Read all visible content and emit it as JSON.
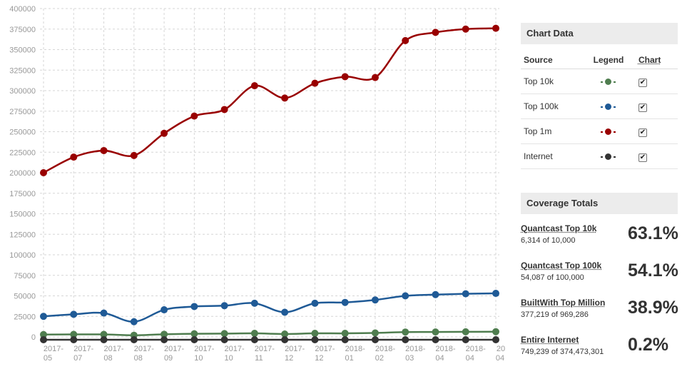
{
  "chart_data": {
    "type": "line",
    "y_ticks": [
      0,
      25000,
      50000,
      75000,
      100000,
      125000,
      150000,
      175000,
      200000,
      225000,
      250000,
      275000,
      300000,
      325000,
      350000,
      375000,
      400000
    ],
    "y_tick_labels": [
      "0",
      "25000",
      "50000",
      "75000",
      "100000",
      "125000",
      "150000",
      "175000",
      "200000",
      "225000",
      "250000",
      "275000",
      "300000",
      "325000",
      "350000",
      "375000",
      "400000"
    ],
    "ylim": [
      0,
      400000
    ],
    "x_labels": [
      [
        "2017-",
        "05"
      ],
      [
        "2017-",
        "07"
      ],
      [
        "2017-",
        "08"
      ],
      [
        "2017-",
        "08"
      ],
      [
        "2017-",
        "09"
      ],
      [
        "2017-",
        "10"
      ],
      [
        "2017-",
        "10"
      ],
      [
        "2017-",
        "11"
      ],
      [
        "2017-",
        "12"
      ],
      [
        "2017-",
        "12"
      ],
      [
        "2018-",
        "01"
      ],
      [
        "2018-",
        "02"
      ],
      [
        "2018-",
        "03"
      ],
      [
        "2018-",
        "04"
      ],
      [
        "2018-",
        "04"
      ],
      [
        "20",
        "04"
      ]
    ],
    "grid": true,
    "series": [
      {
        "name": "Top 1m",
        "color": "#990000",
        "values": [
          200000,
          219000,
          227000,
          221000,
          248000,
          269000,
          277000,
          306000,
          291000,
          309000,
          317000,
          316000,
          361000,
          371000,
          375000,
          376000
        ]
      },
      {
        "name": "Top 100k",
        "color": "#1f5a96",
        "values": [
          25000,
          27500,
          29000,
          18500,
          33000,
          37000,
          38000,
          41000,
          30000,
          41000,
          42000,
          45000,
          50000,
          51500,
          52500,
          53000
        ]
      },
      {
        "name": "Top 10k",
        "color": "#4f7d4f",
        "values": [
          2800,
          3000,
          3000,
          2000,
          3200,
          3800,
          4000,
          4300,
          3500,
          4300,
          4300,
          4800,
          5900,
          6000,
          6200,
          6300
        ]
      },
      {
        "name": "Internet",
        "color": "#333333",
        "values": [
          -3500,
          -3500,
          -3500,
          -3500,
          -3500,
          -3500,
          -3500,
          -3500,
          -3500,
          -3500,
          -3500,
          -3500,
          -3500,
          -3500,
          -3500,
          -3500
        ]
      }
    ]
  },
  "chart_data_panel": {
    "title": "Chart Data",
    "headers": {
      "source": "Source",
      "legend": "Legend",
      "chart": "Chart"
    },
    "rows": [
      {
        "source": "Top 10k",
        "color": "#4f7d4f",
        "checked": "✔"
      },
      {
        "source": "Top 100k",
        "color": "#1f5a96",
        "checked": "✔"
      },
      {
        "source": "Top 1m",
        "color": "#990000",
        "checked": "✔"
      },
      {
        "source": "Internet",
        "color": "#333333",
        "checked": "✔"
      }
    ]
  },
  "coverage": {
    "title": "Coverage Totals",
    "items": [
      {
        "name": "Quantcast Top 10k",
        "sub": "6,314 of 10,000",
        "pct": "63.1%"
      },
      {
        "name": "Quantcast Top 100k",
        "sub": "54,087 of 100,000",
        "pct": "54.1%"
      },
      {
        "name": "BuiltWith Top Million",
        "sub": "377,219 of 969,286",
        "pct": "38.9%"
      },
      {
        "name": "Entire Internet",
        "sub": "749,239 of 374,473,301",
        "pct": "0.2%"
      }
    ]
  }
}
